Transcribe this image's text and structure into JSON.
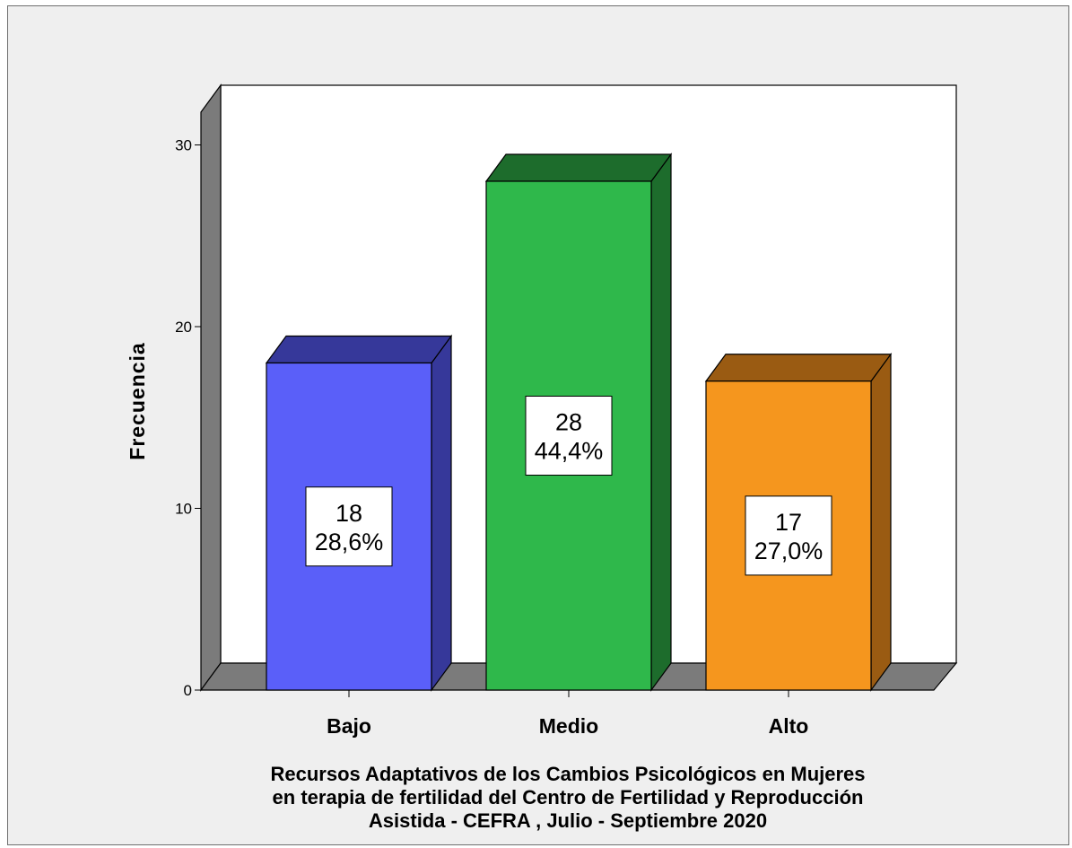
{
  "chart_data": {
    "type": "bar",
    "style": "3d",
    "categories": [
      "Bajo",
      "Medio",
      "Alto"
    ],
    "values": [
      18,
      28,
      17
    ],
    "percent_labels": [
      "28,6%",
      "44,4%",
      "27,0%"
    ],
    "colors": [
      "#5a5ff9",
      "#2fb84b",
      "#f5961e"
    ],
    "side_colors": [
      "#36389a",
      "#1d6c2c",
      "#9a5b12"
    ],
    "ylabel": "Frecuencia",
    "xlabel_lines": [
      "Recursos Adaptativos de los Cambios Psicológicos en Mujeres",
      "en terapia de fertilidad del Centro de Fertilidad y Reproducción",
      "Asistida - CEFRA , Julio - Septiembre 2020"
    ],
    "ylim": [
      0,
      30
    ],
    "yticks": [
      0,
      10,
      20,
      30
    ],
    "grid": false,
    "legend": "none"
  }
}
